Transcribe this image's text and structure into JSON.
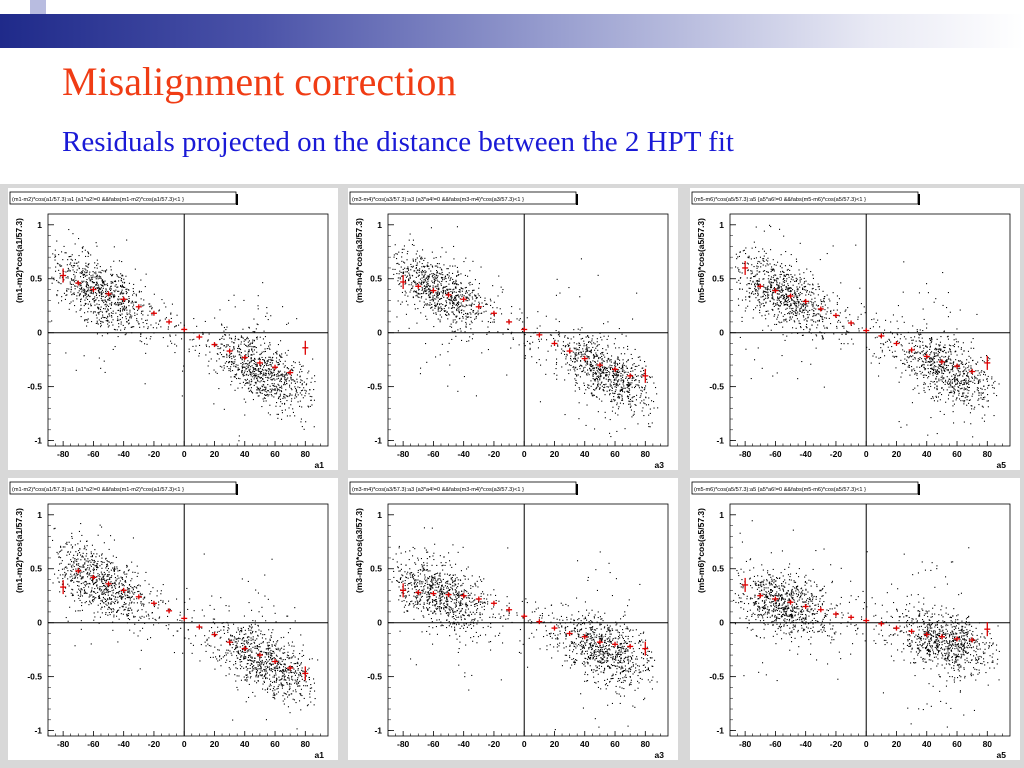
{
  "slide": {
    "title": "Misalignment correction",
    "subtitle": "Residuals projected on the distance between the 2 HPT fit"
  },
  "colors": {
    "title": "#f03c14",
    "subtitle": "#1a1ad6",
    "header_bar": "#1f2a8a",
    "profile_markers": "#dd0000",
    "scatter_points": "#000000"
  },
  "chart_data": [
    {
      "type": "scatter",
      "title": "(m1-m2)*cos(a1/57.3):a1 {a1*a2!=0 &&fabs(m1-m2)*cos(a1/57.3)<1 }",
      "xlabel": "a1",
      "ylabel": "(m1-m2)*cos(a1/57.3)",
      "xlim": [
        -90,
        95
      ],
      "ylim": [
        -1.05,
        1.1
      ],
      "xticks": [
        "-80",
        "-60",
        "-40",
        "-20",
        "0",
        "20",
        "40",
        "60",
        "80"
      ],
      "yticks": [
        "1",
        "0.5",
        "0",
        "-0.5",
        "-1"
      ],
      "grid": false,
      "series": [
        {
          "x": [
            -80,
            -70,
            -60,
            -50,
            -40,
            -30,
            -20,
            -10,
            0,
            10,
            20,
            30,
            40,
            50,
            60,
            70,
            80
          ],
          "values": [
            0.53,
            0.46,
            0.4,
            0.36,
            0.31,
            0.24,
            0.18,
            0.1,
            0.03,
            -0.04,
            -0.11,
            -0.17,
            -0.23,
            -0.28,
            -0.32,
            -0.37,
            -0.14
          ]
        }
      ]
    },
    {
      "type": "scatter",
      "title": "(m3-m4)*cos(a3/57.3):a3 {a3*a4!=0 &&fabs(m3-m4)*cos(a3/57.3)<1 }",
      "xlabel": "a3",
      "ylabel": "(m3-m4)*cos(a3/57.3)",
      "xlim": [
        -90,
        95
      ],
      "ylim": [
        -1.05,
        1.1
      ],
      "xticks": [
        "-80",
        "-60",
        "-40",
        "-20",
        "0",
        "20",
        "40",
        "60",
        "80"
      ],
      "yticks": [
        "1",
        "0.5",
        "0",
        "-0.5",
        "-1"
      ],
      "grid": false,
      "series": [
        {
          "x": [
            -80,
            -70,
            -60,
            -50,
            -40,
            -30,
            -20,
            -10,
            0,
            10,
            20,
            30,
            40,
            50,
            60,
            70,
            80
          ],
          "values": [
            0.47,
            0.43,
            0.39,
            0.35,
            0.31,
            0.24,
            0.18,
            0.1,
            0.03,
            -0.02,
            -0.1,
            -0.17,
            -0.24,
            -0.3,
            -0.34,
            -0.4,
            -0.4
          ]
        }
      ]
    },
    {
      "type": "scatter",
      "title": "(m5-m6)*cos(a5/57.3):a5 {a5*a6!=0 &&fabs(m5-m6)*cos(a5/57.3)<1 }",
      "xlabel": "a5",
      "ylabel": "(m5-m6)*cos(a5/57.3)",
      "xlim": [
        -90,
        95
      ],
      "ylim": [
        -1.05,
        1.1
      ],
      "xticks": [
        "-80",
        "-60",
        "-40",
        "-20",
        "0",
        "20",
        "40",
        "60",
        "80"
      ],
      "yticks": [
        "1",
        "0.5",
        "0",
        "-0.5",
        "-1"
      ],
      "grid": false,
      "series": [
        {
          "x": [
            -80,
            -70,
            -60,
            -50,
            -40,
            -30,
            -20,
            -10,
            0,
            10,
            20,
            30,
            40,
            50,
            60,
            70,
            80
          ],
          "values": [
            0.6,
            0.43,
            0.39,
            0.34,
            0.29,
            0.22,
            0.16,
            0.09,
            0.02,
            -0.03,
            -0.1,
            -0.16,
            -0.22,
            -0.27,
            -0.31,
            -0.36,
            -0.28
          ]
        }
      ]
    },
    {
      "type": "scatter",
      "title": "(m1-m2)*cos(a1/57.3):a1 {a1*a2!=0 &&fabs(m1-m2)*cos(a1/57.3)<1 }",
      "xlabel": "a1",
      "ylabel": "(m1-m2)*cos(a1/57.3)",
      "xlim": [
        -90,
        95
      ],
      "ylim": [
        -1.05,
        1.1
      ],
      "xticks": [
        "-80",
        "-60",
        "-40",
        "-20",
        "0",
        "20",
        "40",
        "60",
        "80"
      ],
      "yticks": [
        "1",
        "0.5",
        "0",
        "-0.5",
        "-1"
      ],
      "grid": false,
      "series": [
        {
          "x": [
            -80,
            -70,
            -60,
            -50,
            -40,
            -30,
            -20,
            -10,
            0,
            10,
            20,
            30,
            40,
            50,
            60,
            70,
            80
          ],
          "values": [
            0.33,
            0.48,
            0.42,
            0.36,
            0.3,
            0.24,
            0.18,
            0.11,
            0.04,
            -0.04,
            -0.11,
            -0.18,
            -0.24,
            -0.3,
            -0.36,
            -0.42,
            -0.47
          ]
        }
      ]
    },
    {
      "type": "scatter",
      "title": "(m3-m4)*cos(a3/57.3):a3 {a3*a4!=0 &&fabs(m3-m4)*cos(a3/57.3)<1 }",
      "xlabel": "a3",
      "ylabel": "(m3-m4)*cos(a3/57.3)",
      "xlim": [
        -90,
        95
      ],
      "ylim": [
        -1.05,
        1.1
      ],
      "xticks": [
        "-80",
        "-60",
        "-40",
        "-20",
        "0",
        "20",
        "40",
        "60",
        "80"
      ],
      "yticks": [
        "1",
        "0.5",
        "0",
        "-0.5",
        "-1"
      ],
      "grid": false,
      "series": [
        {
          "x": [
            -80,
            -70,
            -60,
            -50,
            -40,
            -30,
            -20,
            -10,
            0,
            10,
            20,
            30,
            40,
            50,
            60,
            70,
            80
          ],
          "values": [
            0.3,
            0.28,
            0.27,
            0.26,
            0.25,
            0.22,
            0.18,
            0.12,
            0.06,
            0.01,
            -0.05,
            -0.1,
            -0.13,
            -0.18,
            -0.2,
            -0.22,
            -0.24
          ]
        }
      ]
    },
    {
      "type": "scatter",
      "title": "(m5-m6)*cos(a5/57.3):a5 {a5*a6!=0 &&fabs(m5-m6)*cos(a5/57.3)<1 }",
      "xlabel": "a5",
      "ylabel": "(m5-m6)*cos(a5/57.3)",
      "xlim": [
        -90,
        95
      ],
      "ylim": [
        -1.05,
        1.1
      ],
      "xticks": [
        "-80",
        "-60",
        "-40",
        "-20",
        "0",
        "20",
        "40",
        "60",
        "80"
      ],
      "yticks": [
        "1",
        "0.5",
        "0",
        "-0.5",
        "-1"
      ],
      "grid": false,
      "series": [
        {
          "x": [
            -80,
            -70,
            -60,
            -50,
            -40,
            -30,
            -20,
            -10,
            0,
            10,
            20,
            30,
            40,
            50,
            60,
            70,
            80
          ],
          "values": [
            0.35,
            0.25,
            0.22,
            0.19,
            0.15,
            0.12,
            0.08,
            0.05,
            0.02,
            -0.01,
            -0.05,
            -0.08,
            -0.11,
            -0.13,
            -0.15,
            -0.16,
            -0.06
          ]
        }
      ]
    }
  ]
}
